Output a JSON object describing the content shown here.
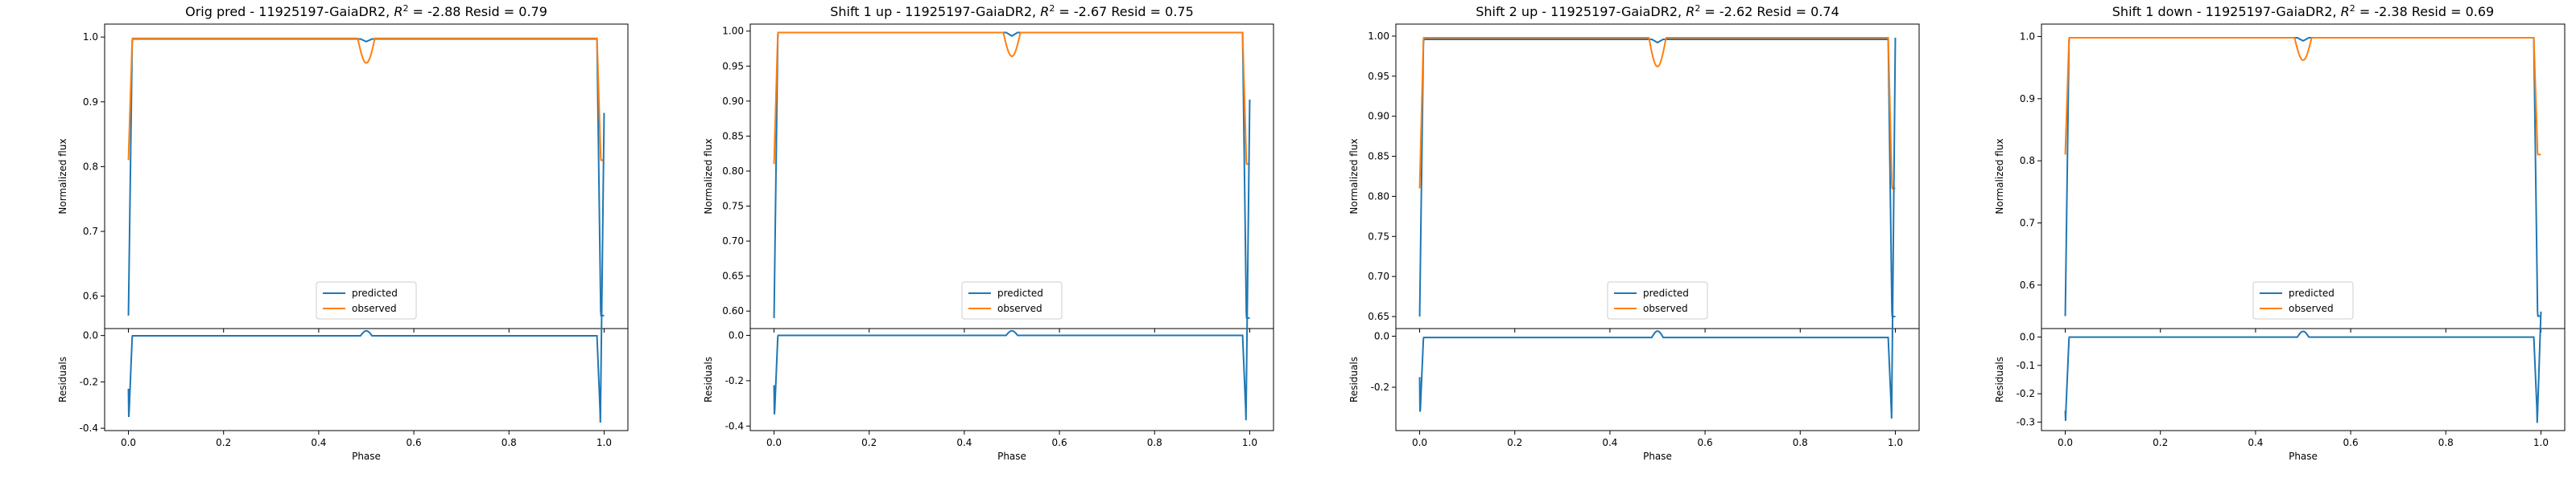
{
  "colors": {
    "predicted": "#1f77b4",
    "observed": "#ff7f0e"
  },
  "chart_data": [
    {
      "type": "line",
      "title_prefix": "Orig pred - 11925197-GaiaDR2, ",
      "title_r2": "R",
      "title_r2_sup": "2",
      "title_suffix": " = -2.88 Resid = 0.79",
      "xlabel": "Phase",
      "ylabel_top": "Normalized flux",
      "ylabel_bottom": "Residuals",
      "legend_placement": "lower center",
      "series_names": [
        "predicted",
        "observed"
      ],
      "x_ticks": [
        "0.0",
        "0.2",
        "0.4",
        "0.6",
        "0.8",
        "1.0"
      ],
      "xlim": [
        -0.05,
        1.05
      ],
      "top": {
        "ylim": [
          0.55,
          1.02
        ],
        "y_ticks": [
          "0.6",
          "0.7",
          "0.8",
          "0.9",
          "1.0"
        ],
        "predicted": {
          "base": 0.997,
          "low": 0.57,
          "dip": 0.993
        },
        "observed": {
          "base": 0.998,
          "low": 0.81,
          "dip": 0.96
        }
      },
      "bottom": {
        "ylim": [
          -0.41,
          0.03
        ],
        "y_ticks": [
          "-0.4",
          "-0.2",
          "0.0"
        ],
        "resid": {
          "base": -0.001,
          "edge": -0.23,
          "low": -0.4,
          "bump": 0.02
        }
      }
    },
    {
      "type": "line",
      "title_prefix": "Shift 1 up - 11925197-GaiaDR2, ",
      "title_r2": "R",
      "title_r2_sup": "2",
      "title_suffix": " = -2.67 Resid = 0.75",
      "xlabel": "Phase",
      "ylabel_top": "Normalized flux",
      "ylabel_bottom": "Residuals",
      "legend_placement": "lower center",
      "series_names": [
        "predicted",
        "observed"
      ],
      "x_ticks": [
        "0.0",
        "0.2",
        "0.4",
        "0.6",
        "0.8",
        "1.0"
      ],
      "xlim": [
        -0.05,
        1.05
      ],
      "top": {
        "ylim": [
          0.575,
          1.01
        ],
        "y_ticks": [
          "0.60",
          "0.65",
          "0.70",
          "0.75",
          "0.80",
          "0.85",
          "0.90",
          "0.95",
          "1.00"
        ],
        "predicted": {
          "base": 0.998,
          "low": 0.59,
          "dip": 0.993
        },
        "observed": {
          "base": 0.998,
          "low": 0.81,
          "dip": 0.964
        }
      },
      "bottom": {
        "ylim": [
          -0.42,
          0.03
        ],
        "y_ticks": [
          "-0.4",
          "-0.2",
          "0.0"
        ],
        "resid": {
          "base": 0.0,
          "edge": -0.22,
          "low": -0.4,
          "bump": 0.02
        }
      }
    },
    {
      "type": "line",
      "title_prefix": "Shift 2 up - 11925197-GaiaDR2, ",
      "title_r2": "R",
      "title_r2_sup": "2",
      "title_suffix": " = -2.62 Resid = 0.74",
      "xlabel": "Phase",
      "ylabel_top": "Normalized flux",
      "ylabel_bottom": "Residuals",
      "legend_placement": "lower center",
      "series_names": [
        "predicted",
        "observed"
      ],
      "x_ticks": [
        "0.0",
        "0.2",
        "0.4",
        "0.6",
        "0.8",
        "1.0"
      ],
      "xlim": [
        -0.05,
        1.05
      ],
      "top": {
        "ylim": [
          0.635,
          1.015
        ],
        "y_ticks": [
          "0.65",
          "0.70",
          "0.75",
          "0.80",
          "0.85",
          "0.90",
          "0.95",
          "1.00"
        ],
        "predicted": {
          "base": 0.996,
          "low": 0.65,
          "dip": 0.992
        },
        "observed": {
          "base": 0.998,
          "low": 0.81,
          "dip": 0.962
        }
      },
      "bottom": {
        "ylim": [
          -0.37,
          0.03
        ],
        "y_ticks": [
          "-0.2",
          "0.0"
        ],
        "resid": {
          "base": -0.005,
          "edge": -0.16,
          "low": -0.35,
          "bump": 0.02
        }
      }
    },
    {
      "type": "line",
      "title_prefix": "Shift 1 down - 11925197-GaiaDR2, ",
      "title_r2": "R",
      "title_r2_sup": "2",
      "title_suffix": " = -2.38 Resid = 0.69",
      "xlabel": "Phase",
      "ylabel_top": "Normalized flux",
      "ylabel_bottom": "Residuals",
      "legend_placement": "lower center",
      "series_names": [
        "predicted",
        "observed"
      ],
      "x_ticks": [
        "0.0",
        "0.2",
        "0.4",
        "0.6",
        "0.8",
        "1.0"
      ],
      "xlim": [
        -0.05,
        1.05
      ],
      "top": {
        "ylim": [
          0.53,
          1.02
        ],
        "y_ticks": [
          "0.6",
          "0.7",
          "0.8",
          "0.9",
          "1.0"
        ],
        "predicted": {
          "base": 0.998,
          "low": 0.55,
          "dip": 0.993
        },
        "observed": {
          "base": 0.998,
          "low": 0.81,
          "dip": 0.962
        }
      },
      "bottom": {
        "ylim": [
          -0.33,
          0.03
        ],
        "y_ticks": [
          "-0.3",
          "-0.2",
          "-0.1",
          "0.0"
        ],
        "resid": {
          "base": 0.0,
          "edge": -0.26,
          "low": -0.31,
          "bump": 0.02
        }
      }
    }
  ]
}
